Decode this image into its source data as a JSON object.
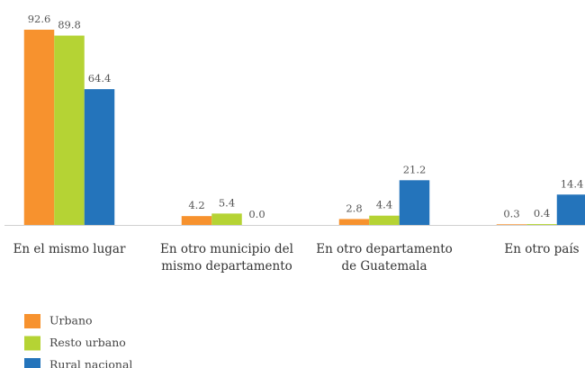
{
  "chart_data": {
    "type": "bar",
    "categories": [
      "En el mismo lugar",
      "En otro municipio del\nmismo departamento",
      "En otro departamento\nde Guatemala",
      "En otro país"
    ],
    "series": [
      {
        "name": "Urbano",
        "color": "#f7922e",
        "values": [
          92.6,
          4.2,
          2.8,
          0.3
        ],
        "value_labels": [
          "92.6",
          "4.2",
          "2.8",
          "0.3"
        ]
      },
      {
        "name": "Resto urbano",
        "color": "#b5d334",
        "values": [
          89.8,
          5.4,
          4.4,
          0.4
        ],
        "value_labels": [
          "89.8",
          "5.4",
          "4.4",
          "0.4"
        ]
      },
      {
        "name": "Rural nacional",
        "color": "#2474bb",
        "values": [
          64.4,
          0.0,
          21.2,
          14.4
        ],
        "value_labels": [
          "64.4",
          "0.0",
          "21.2",
          "14.4"
        ]
      }
    ],
    "legend": "bottom-left"
  }
}
